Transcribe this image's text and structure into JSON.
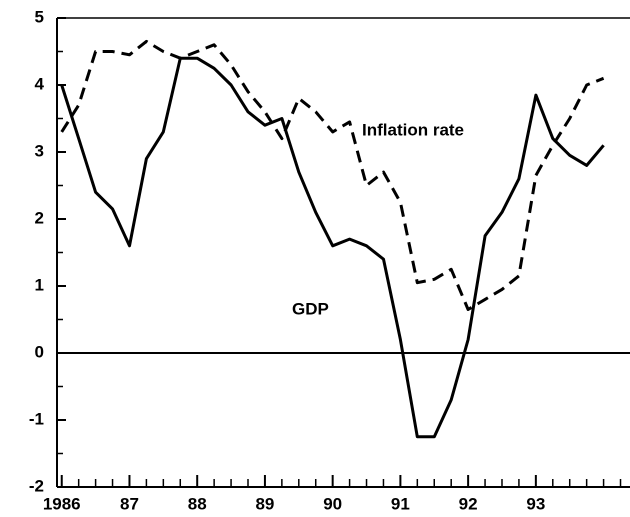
{
  "chart_data": {
    "type": "line",
    "x": [
      1986,
      1986.25,
      1986.5,
      1986.75,
      1987,
      1987.25,
      1987.5,
      1987.75,
      1988,
      1988.25,
      1988.5,
      1988.75,
      1989,
      1989.25,
      1989.5,
      1989.75,
      1990,
      1990.25,
      1990.5,
      1990.75,
      1991,
      1991.25,
      1991.5,
      1991.75,
      1992,
      1992.25,
      1992.5,
      1992.75,
      1993,
      1993.25,
      1993.5,
      1993.75,
      1994
    ],
    "series": [
      {
        "name": "GDP",
        "color": "#000000",
        "dash": false,
        "values": [
          4.0,
          3.2,
          2.4,
          2.15,
          1.6,
          2.9,
          3.3,
          4.4,
          4.4,
          4.25,
          4.0,
          3.6,
          3.4,
          3.5,
          2.7,
          2.1,
          1.6,
          1.7,
          1.6,
          1.4,
          0.2,
          -1.25,
          -1.25,
          -0.7,
          0.2,
          1.75,
          2.1,
          2.6,
          3.85,
          3.2,
          2.95,
          2.8,
          3.1
        ]
      },
      {
        "name": "Inflation rate",
        "color": "#000000",
        "dash": true,
        "values": [
          3.3,
          3.7,
          4.5,
          4.5,
          4.45,
          4.65,
          4.5,
          4.4,
          4.5,
          4.6,
          4.3,
          3.9,
          3.6,
          3.2,
          3.8,
          3.6,
          3.3,
          3.45,
          2.5,
          2.7,
          2.25,
          1.05,
          1.1,
          1.25,
          0.65,
          0.8,
          0.95,
          1.15,
          2.65,
          3.1,
          3.5,
          4.0,
          4.1
        ]
      }
    ],
    "xlim": [
      1985.93,
      1994.39
    ],
    "ylim": [
      -2,
      5
    ],
    "xticks": [
      {
        "value": 1986,
        "label": "1986"
      },
      {
        "value": 1987,
        "label": "87"
      },
      {
        "value": 1988,
        "label": "88"
      },
      {
        "value": 1989,
        "label": "89"
      },
      {
        "value": 1990,
        "label": "90"
      },
      {
        "value": 1991,
        "label": "91"
      },
      {
        "value": 1992,
        "label": "92"
      },
      {
        "value": 1993,
        "label": "93"
      }
    ],
    "xminorticks": [
      1986.25,
      1986.5,
      1986.75,
      1987.25,
      1987.5,
      1987.75,
      1988.25,
      1988.5,
      1988.75,
      1989.25,
      1989.5,
      1989.75,
      1990.25,
      1990.5,
      1990.75,
      1991.25,
      1991.5,
      1991.75,
      1992.25,
      1992.5,
      1992.75,
      1993.25,
      1993.5,
      1993.75,
      1994,
      1994.25
    ],
    "yticks": [
      -2,
      -1,
      0,
      1,
      2,
      3,
      4,
      5
    ],
    "yminorticks": [
      -1.5,
      -0.5,
      0.5,
      1.5,
      2.5,
      3.5,
      4.5
    ],
    "zero_line": true,
    "grid": false
  }
}
